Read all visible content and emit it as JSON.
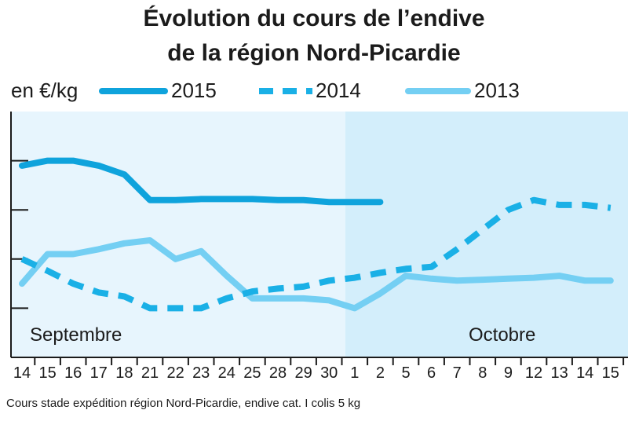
{
  "chart_data": {
    "type": "line",
    "title_line1": "Évolution du cours de l’endive",
    "title_line2": "de la région Nord-Picardie",
    "unit_label": "en €/kg",
    "source": "Cours stade expédition région Nord-Picardie, endive cat. I colis 5 kg",
    "month_labels": [
      "Septembre",
      "Octobre"
    ],
    "categories": [
      "14",
      "15",
      "16",
      "17",
      "18",
      "21",
      "22",
      "23",
      "24",
      "25",
      "28",
      "29",
      "30",
      "1",
      "2",
      "5",
      "6",
      "7",
      "8",
      "9",
      "12",
      "13",
      "14",
      "15"
    ],
    "series": [
      {
        "name": "2015",
        "style": "solid-thick",
        "color": "#0fa3dc",
        "values": [
          1.95,
          2.0,
          2.0,
          1.95,
          1.86,
          1.6,
          1.6,
          1.61,
          1.61,
          1.61,
          1.6,
          1.6,
          1.58,
          1.58,
          1.58,
          null,
          null,
          null,
          null,
          null,
          null,
          null,
          null,
          null
        ]
      },
      {
        "name": "2014",
        "style": "dashed",
        "color": "#1ab0e6",
        "values": [
          1.0,
          0.88,
          0.75,
          0.66,
          0.62,
          0.5,
          0.5,
          0.5,
          0.6,
          0.67,
          0.7,
          0.72,
          0.78,
          0.81,
          0.86,
          0.9,
          0.92,
          1.1,
          1.3,
          1.5,
          1.6,
          1.55,
          1.55,
          1.52
        ]
      },
      {
        "name": "2013",
        "style": "solid-light",
        "color": "#74cff3",
        "values": [
          0.75,
          1.05,
          1.05,
          1.1,
          1.16,
          1.19,
          1.0,
          1.08,
          0.83,
          0.6,
          0.6,
          0.6,
          0.58,
          0.5,
          0.65,
          0.83,
          0.8,
          0.78,
          0.79,
          0.8,
          0.81,
          0.83,
          0.78,
          0.78
        ]
      }
    ],
    "ylim": [
      0,
      2.5
    ],
    "y_gridlines": [
      0.5,
      1.0,
      1.5,
      2.0
    ],
    "colors": {
      "band_september": "#e7f5fd",
      "band_october": "#d3eefb",
      "axis": "#1b1b1b"
    }
  }
}
